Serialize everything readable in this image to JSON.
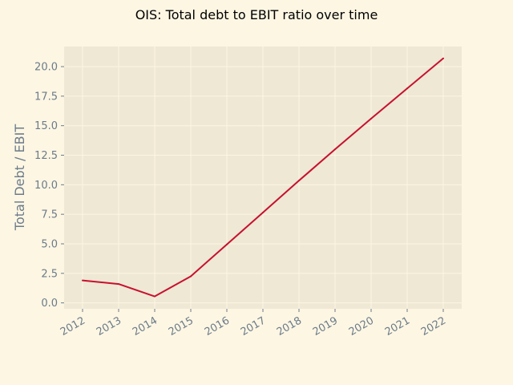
{
  "chart_data": {
    "type": "line",
    "title": "OIS: Total debt to EBIT ratio over time",
    "xlabel": "",
    "ylabel": "Total Debt / EBIT",
    "x": [
      "2012",
      "2013",
      "2014",
      "2015",
      "2016",
      "2017",
      "2018",
      "2019",
      "2020",
      "2021",
      "2022"
    ],
    "series": [
      {
        "values": [
          1.9,
          1.6,
          0.55,
          2.25,
          4.95,
          7.65,
          10.35,
          13.0,
          15.6,
          18.15,
          20.7
        ]
      }
    ],
    "ylim": [
      -0.5,
      21.7
    ],
    "yticks": [
      "0.0",
      "2.5",
      "5.0",
      "7.5",
      "10.0",
      "12.5",
      "15.0",
      "17.5",
      "20.0"
    ],
    "grid": true,
    "legend": "none"
  },
  "colors": {
    "page_background": "#fdf6e3",
    "plot_background": "#eee8d5",
    "grid": "#fdf6e3",
    "line": "#c8102e",
    "tick_text": "#6b7b8a",
    "title_text": "#000000"
  }
}
